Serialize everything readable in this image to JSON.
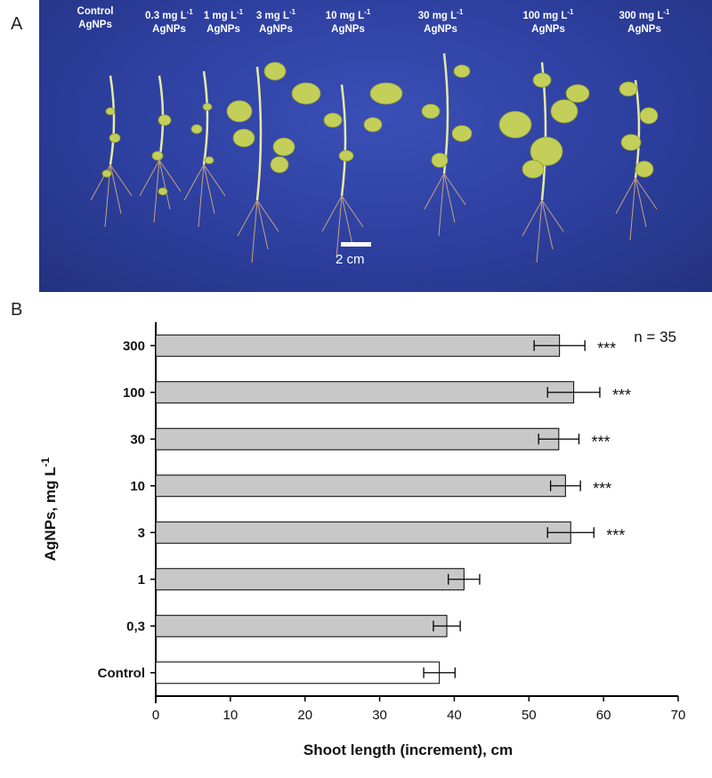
{
  "panel_labels": {
    "a": "A",
    "b": "B"
  },
  "photo": {
    "treatments": [
      {
        "line1": "Control",
        "line2": "AgNPs"
      },
      {
        "line1": "0.3 mg L-1",
        "line2": "AgNPs"
      },
      {
        "line1": "1 mg L-1",
        "line2": "AgNPs"
      },
      {
        "line1": "3 mg L-1",
        "line2": "AgNPs"
      },
      {
        "line1": "10 mg L-1",
        "line2": "AgNPs"
      },
      {
        "line1": "30 mg L-1",
        "line2": "AgNPs"
      },
      {
        "line1": "100 mg L-1",
        "line2": "AgNPs"
      },
      {
        "line1": "300 mg L-1",
        "line2": "AgNPs"
      }
    ],
    "scale_label": "2 cm",
    "background_color": "#2d3f9e"
  },
  "chart_data": {
    "type": "bar",
    "orientation": "horizontal",
    "categories": [
      "Control",
      "0,3",
      "1",
      "3",
      "10",
      "30",
      "100",
      "300"
    ],
    "values": [
      38,
      39,
      41.3,
      55.6,
      54.9,
      54,
      56,
      54.1
    ],
    "errors": [
      2.1,
      1.8,
      2.1,
      3.1,
      2.0,
      2.7,
      3.5,
      3.4
    ],
    "significance": [
      "",
      "",
      "",
      "***",
      "***",
      "***",
      "***",
      "***"
    ],
    "bar_colors": [
      "#ffffff",
      "#c8c8c8",
      "#c8c8c8",
      "#c8c8c8",
      "#c8c8c8",
      "#c8c8c8",
      "#c8c8c8",
      "#c8c8c8"
    ],
    "xlabel": "Shoot length (increment), cm",
    "ylabel": "AgNPs, mg L-1",
    "xlim": [
      0,
      70
    ],
    "xticks": [
      0,
      10,
      20,
      30,
      40,
      50,
      60,
      70
    ],
    "annotation": "n = 35",
    "grid": false
  }
}
